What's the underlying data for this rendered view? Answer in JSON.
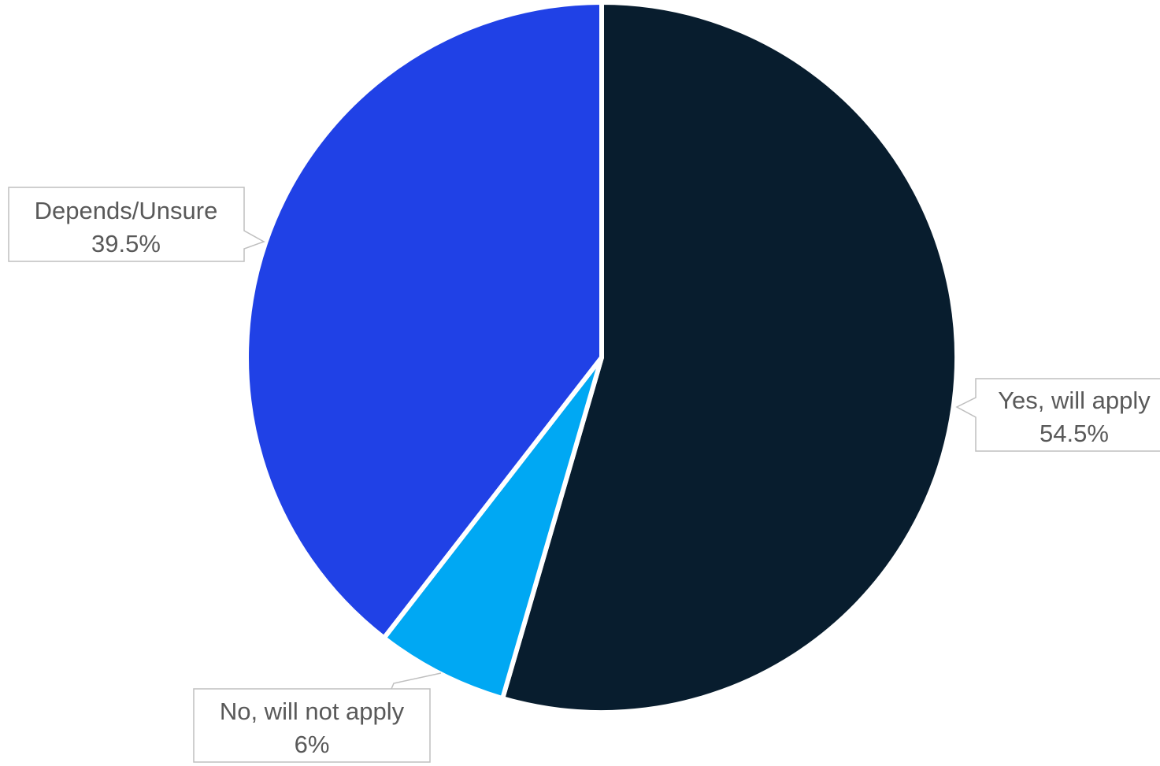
{
  "chart_data": {
    "type": "pie",
    "title": "",
    "slices": [
      {
        "label": "Yes, will apply",
        "value": 54.5,
        "value_label": "54.5%",
        "color": "#081d2e"
      },
      {
        "label": "No, will not apply",
        "value": 6,
        "value_label": "6%",
        "color": "#00a8f3"
      },
      {
        "label": "Depends/Unsure",
        "value": 39.5,
        "value_label": "39.5%",
        "color": "#2041e6"
      }
    ],
    "start_angle": "12 o'clock",
    "direction": "clockwise",
    "legend": "none",
    "data_labels": "outside callouts"
  }
}
